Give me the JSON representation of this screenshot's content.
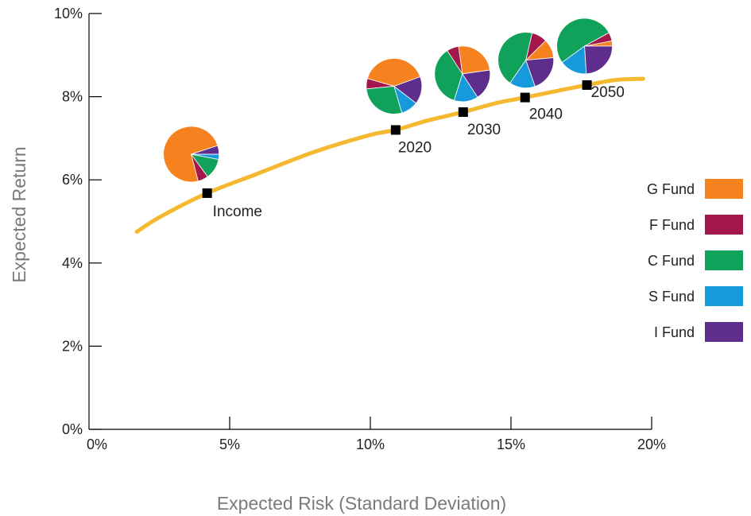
{
  "chart_data": {
    "type": "scatter",
    "title": "",
    "xlabel": "Expected Risk (Standard Deviation)",
    "ylabel": "Expected Return",
    "xlim": [
      0,
      20
    ],
    "ylim": [
      0,
      10
    ],
    "x_ticks": [
      "0%",
      "5%",
      "10%",
      "15%",
      "20%"
    ],
    "y_ticks": [
      "0%",
      "2%",
      "4%",
      "6%",
      "8%",
      "10%"
    ],
    "grid": false,
    "frontier": {
      "color": "#F5B82E",
      "x": [
        1.7,
        2.5,
        4.2,
        6,
        8,
        10,
        10.9,
        12,
        13.3,
        14.5,
        15.5,
        16.5,
        17.7,
        18.7,
        19.7
      ],
      "y": [
        4.75,
        5.1,
        5.68,
        6.15,
        6.67,
        7.08,
        7.2,
        7.42,
        7.63,
        7.85,
        7.98,
        8.12,
        8.28,
        8.4,
        8.43
      ]
    },
    "funds": [
      {
        "name": "G Fund",
        "color": "#F5821F"
      },
      {
        "name": "F Fund",
        "color": "#A3174D"
      },
      {
        "name": "C Fund",
        "color": "#10A25A"
      },
      {
        "name": "S Fund",
        "color": "#169ADB"
      },
      {
        "name": "I Fund",
        "color": "#5F2D8C"
      }
    ],
    "portfolios": [
      {
        "label": "Income",
        "x": 4.2,
        "y": 5.68,
        "allocation": [
          74,
          6,
          12,
          3,
          5
        ]
      },
      {
        "label": "2020",
        "x": 10.9,
        "y": 7.2,
        "allocation": [
          40,
          6,
          28,
          10,
          16
        ]
      },
      {
        "label": "2030",
        "x": 13.3,
        "y": 7.63,
        "allocation": [
          25,
          7,
          36,
          14,
          18
        ]
      },
      {
        "label": "2040",
        "x": 15.5,
        "y": 7.98,
        "allocation": [
          11,
          9,
          44,
          15,
          21
        ]
      },
      {
        "label": "2050",
        "x": 17.7,
        "y": 8.28,
        "allocation": [
          3,
          5,
          52,
          16,
          24
        ]
      }
    ],
    "legend": {
      "position": "right"
    }
  }
}
